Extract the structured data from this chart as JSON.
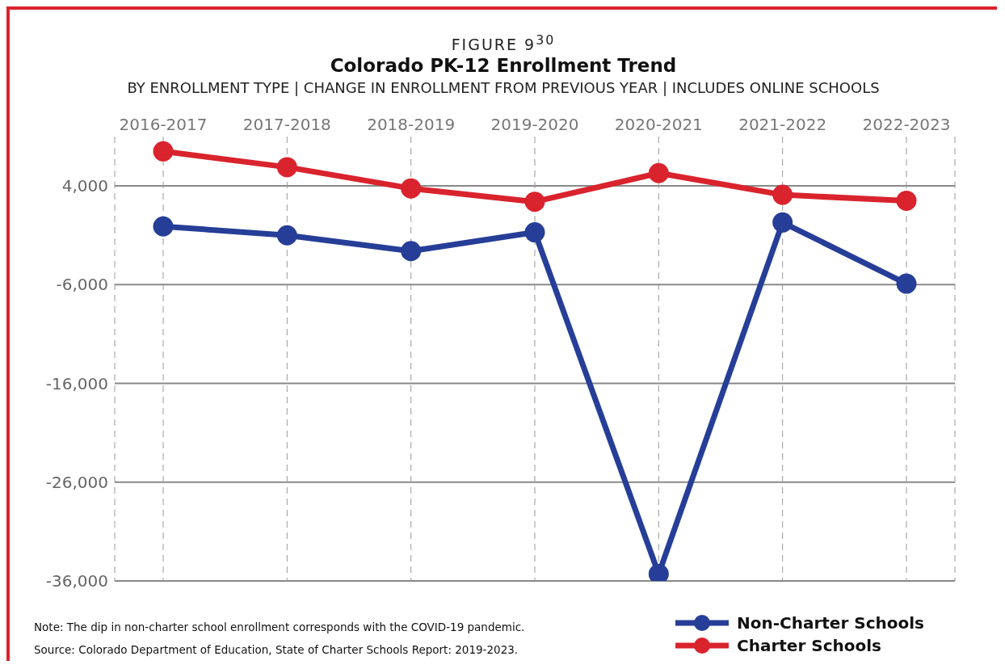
{
  "chart_data": {
    "type": "line",
    "title": "Colorado PK-12 Enrollment Trend",
    "subtitle": "FIGURE 9$^{30}$",
    "xlabel": "BY ENROLLMENT TYPE | CHANGE IN ENROLLMENT FROM PREVIOUS YEAR | INCLUDES ONLINE SCHOOLS",
    "categories": [
      "2016-2017",
      "2017-2018",
      "2018-2019",
      "2019-2020",
      "2020-2021",
      "2021-2022",
      "2022-2023"
    ],
    "series": [
      {
        "name": "Non-Charter Schools",
        "color": "#263e97",
        "values": [
          -100,
          -1000,
          -2600,
          -700,
          -35300,
          300,
          -5900
        ]
      },
      {
        "name": "Charter Schools",
        "color": "#d9232d",
        "values": [
          7500,
          5900,
          3750,
          2400,
          5300,
          3100,
          2500
        ]
      }
    ],
    "ylim": [
      -36000,
      9000
    ],
    "yticks": [
      {
        "value": 4000,
        "label": "4,000"
      },
      {
        "value": -6000,
        "label": "-6,000"
      },
      {
        "value": -16000,
        "label": "-16,000"
      },
      {
        "value": -26000,
        "label": "-26,000"
      },
      {
        "value": -36000,
        "label": "-36,000"
      }
    ],
    "grid": true,
    "legend": "bottom right",
    "marker": "circle",
    "line_style": "solid",
    "annotations": [
      "Note: The dip in non-charter school enrollment corresponds with the COVID-19 pandemic.",
      "Source: Colorado Department of Education, State of Charter Schools Report: 2019-2023."
    ]
  }
}
